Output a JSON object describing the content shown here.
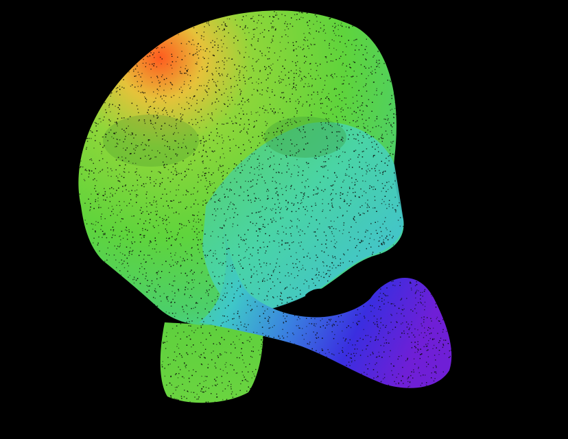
{
  "scene": {
    "subject": "skull-point-cloud",
    "background_color": "#000000",
    "point_color": "#0a0a0a",
    "colormap": [
      "#ff5a1f",
      "#e6c23a",
      "#8fd63a",
      "#4fcf3f",
      "#3fd08a",
      "#4fd6c8",
      "#3a7fe0",
      "#3a2ee0",
      "#6f1fd6"
    ]
  }
}
